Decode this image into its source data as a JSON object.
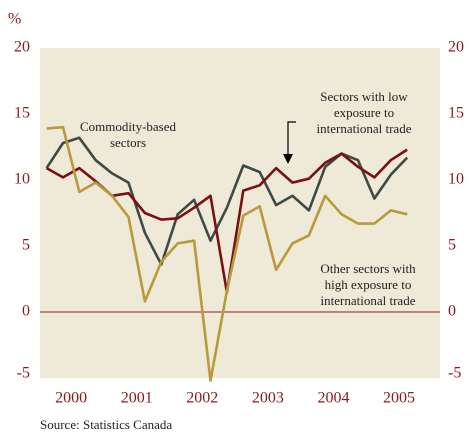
{
  "chart_data": {
    "type": "line",
    "y_label": "%",
    "source": "Source: Statistics Canada",
    "x": [
      2000,
      2000.25,
      2000.5,
      2000.75,
      2001,
      2001.25,
      2001.5,
      2001.75,
      2002,
      2002.25,
      2002.5,
      2002.75,
      2003,
      2003.25,
      2003.5,
      2003.75,
      2004,
      2004.25,
      2004.5,
      2004.75,
      2005,
      2005.25,
      2005.5
    ],
    "xlim": [
      1999.9,
      2006.0
    ],
    "xticks": [
      {
        "value": 2000.375,
        "label": "2000"
      },
      {
        "value": 2001.375,
        "label": "2001"
      },
      {
        "value": 2002.375,
        "label": "2002"
      },
      {
        "value": 2003.375,
        "label": "2003"
      },
      {
        "value": 2004.375,
        "label": "2004"
      },
      {
        "value": 2005.375,
        "label": "2005"
      }
    ],
    "ylim": [
      -5,
      20
    ],
    "yticks": [
      -5,
      0,
      5,
      10,
      15,
      20
    ],
    "y2lim": [
      -5,
      20
    ],
    "y2ticks": [
      -5,
      0,
      5,
      10,
      15,
      20
    ],
    "series": [
      {
        "name": "Commodity-based sectors",
        "color": "#3d4a46",
        "values": [
          10.9,
          12.8,
          13.2,
          11.5,
          10.5,
          9.8,
          6.0,
          3.6,
          7.4,
          8.5,
          5.4,
          7.9,
          11.1,
          10.6,
          8.1,
          8.8,
          7.7,
          11.0,
          12.0,
          11.5,
          8.6,
          10.4,
          11.7
        ]
      },
      {
        "name": "Sectors with low exposure to international trade",
        "color": "#7a0f14",
        "values": [
          10.9,
          10.2,
          10.9,
          9.9,
          8.8,
          9.0,
          7.5,
          7.0,
          7.1,
          7.9,
          8.8,
          1.5,
          9.2,
          9.6,
          10.9,
          9.8,
          10.1,
          11.3,
          12.0,
          11.0,
          10.2,
          11.5,
          12.3
        ]
      },
      {
        "name": "Other sectors with high exposure to international trade",
        "color": "#b89a3a",
        "values": [
          13.9,
          14.0,
          9.1,
          9.8,
          8.8,
          7.2,
          0.8,
          3.8,
          5.2,
          5.4,
          -5.2,
          1.6,
          7.3,
          8.0,
          3.2,
          5.2,
          5.8,
          8.8,
          7.4,
          6.7,
          6.7,
          7.7,
          7.4
        ]
      }
    ],
    "annotations": [
      [
        "Commodity-based",
        "sectors"
      ],
      [
        "Sectors with low",
        "exposure to",
        "international trade"
      ],
      [
        "Other sectors with",
        "high exposure to",
        "international trade"
      ]
    ]
  }
}
